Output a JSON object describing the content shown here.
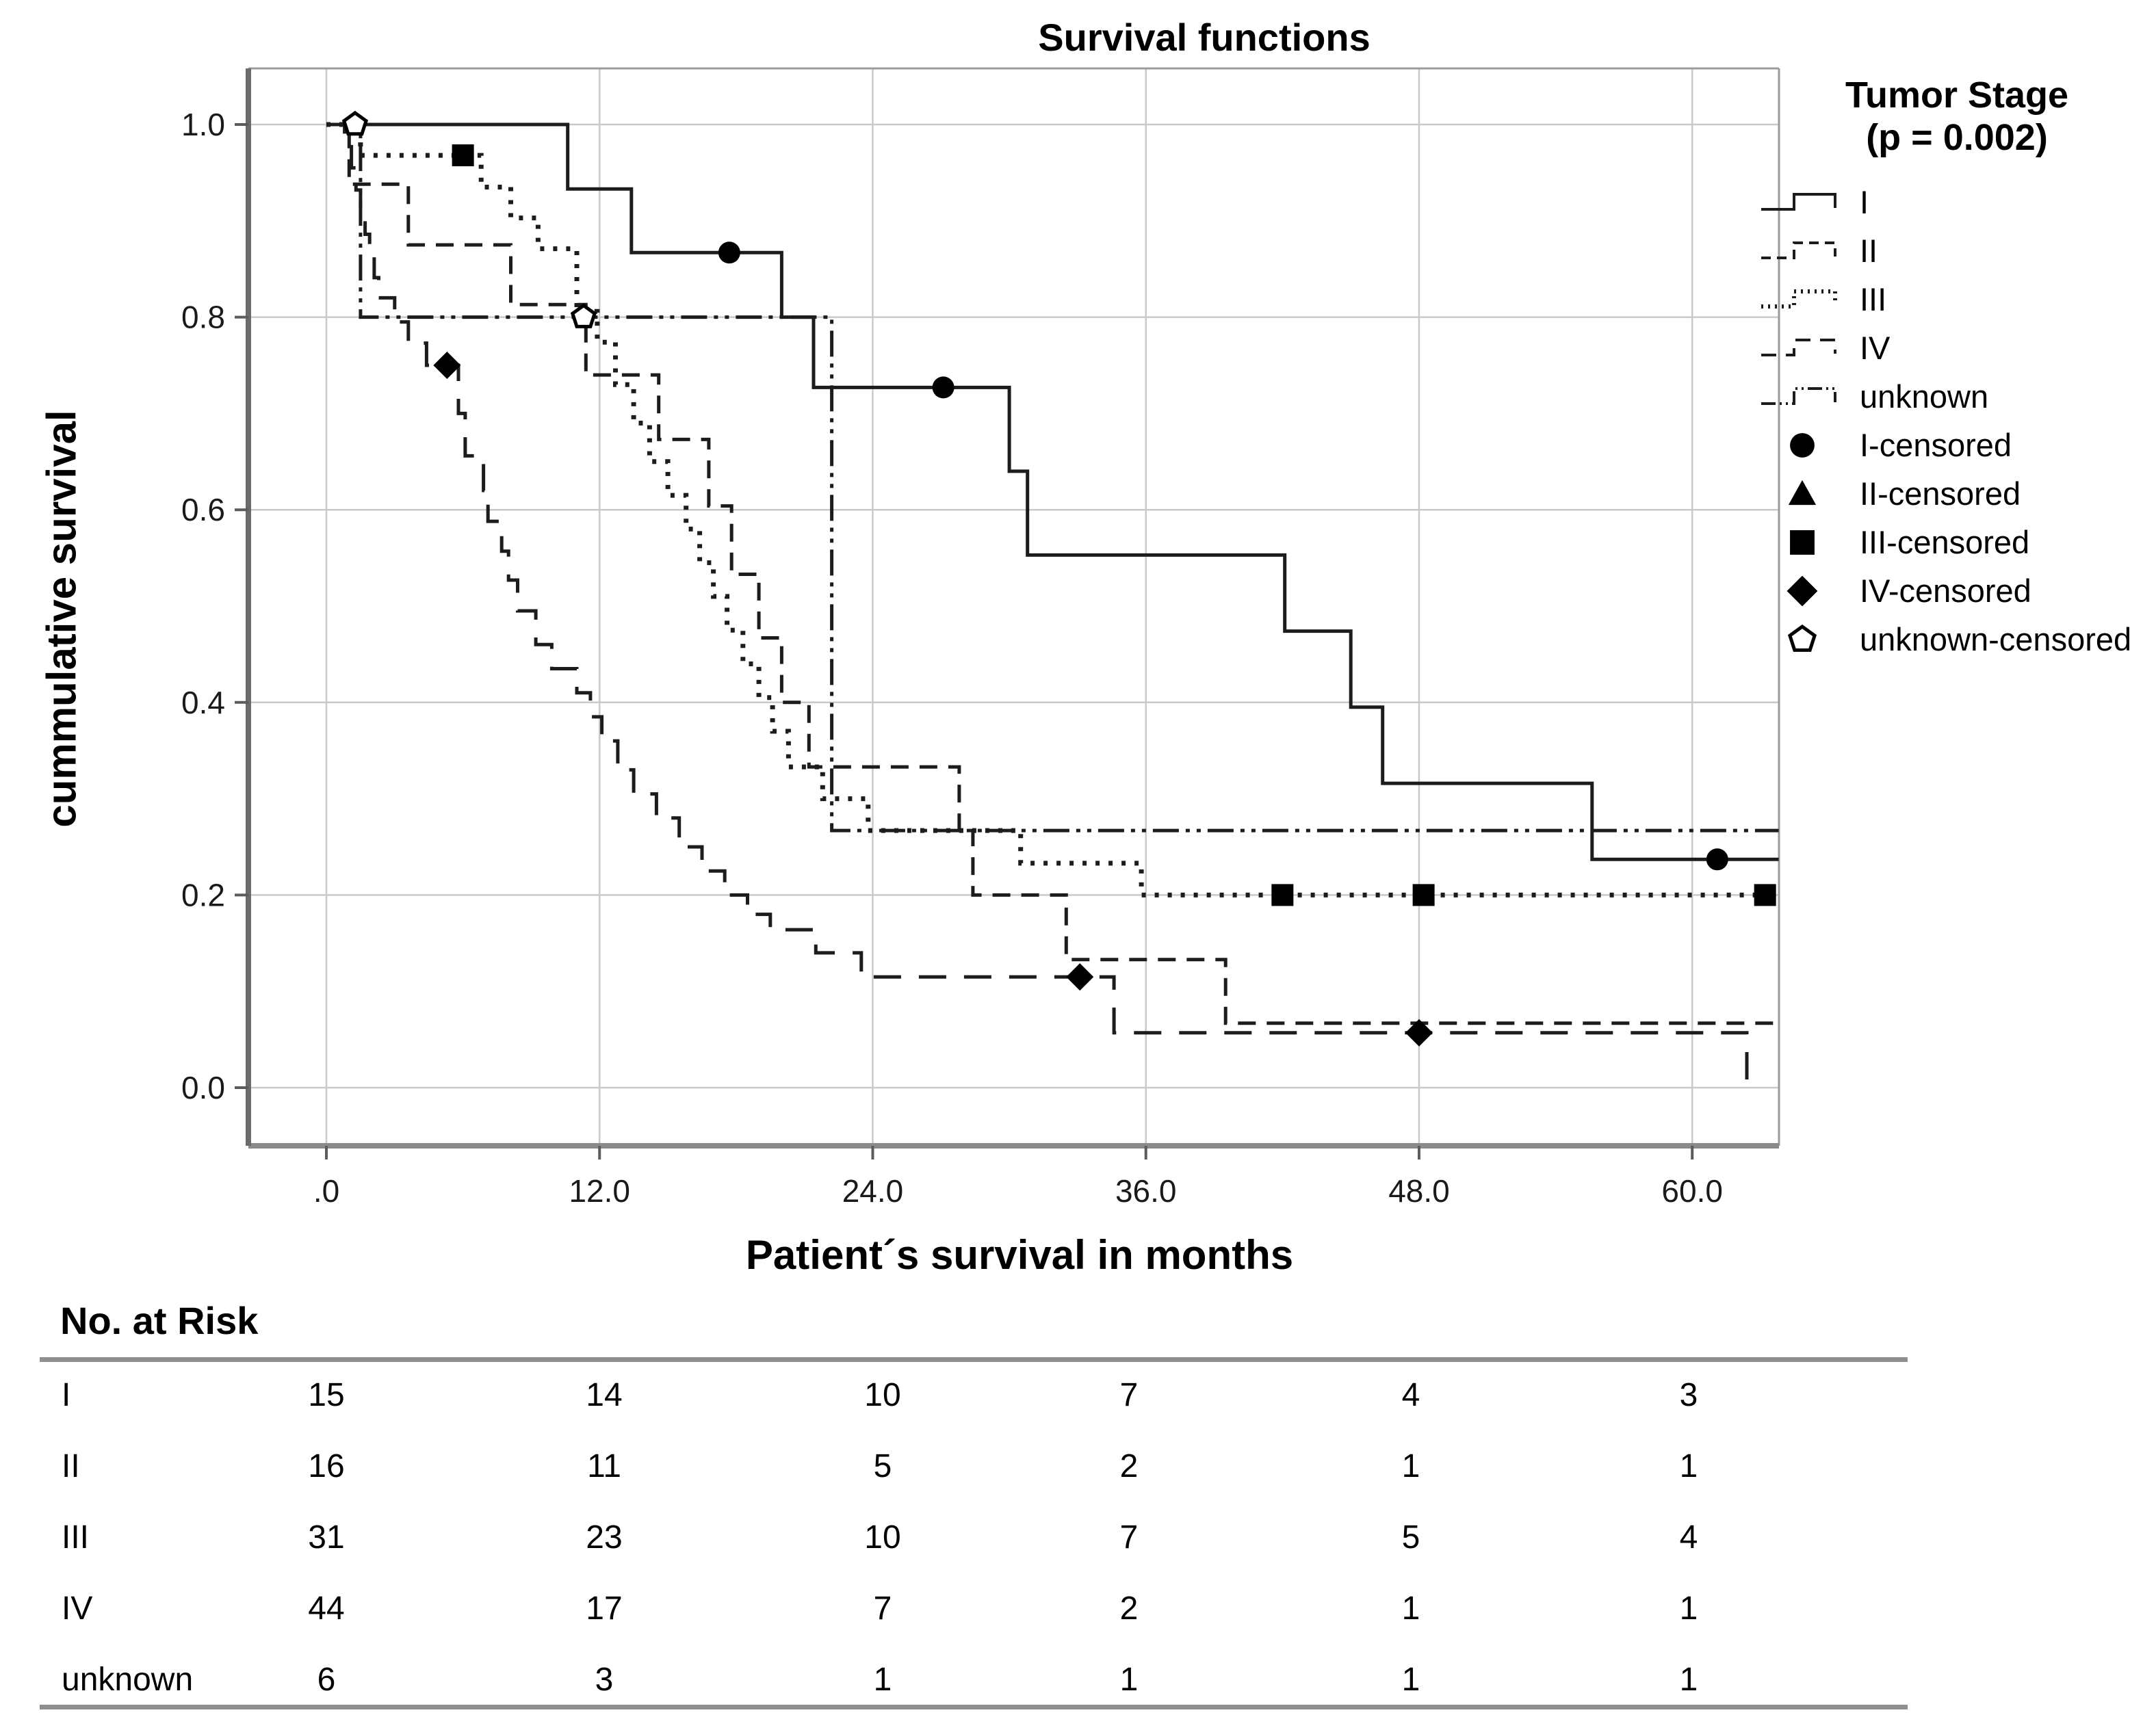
{
  "title": "Survival functions",
  "axes": {
    "ylabel": "cummulative survival",
    "xlabel": "Patient´s survival in months",
    "y_ticks": [
      "1.0",
      "0.8",
      "0.6",
      "0.4",
      "0.2",
      "0.0"
    ],
    "y_tick_values": [
      1.0,
      0.8,
      0.6,
      0.4,
      0.2,
      0.0
    ],
    "x_ticks": [
      ".0",
      "12.0",
      "24.0",
      "36.0",
      "48.0",
      "60.0"
    ],
    "x_tick_values": [
      0,
      12,
      24,
      36,
      48,
      60
    ]
  },
  "legend": {
    "title": "Tumor Stage",
    "subtitle": "(p = 0.002)",
    "line_entries": [
      {
        "label": "I",
        "style": "solid"
      },
      {
        "label": "II",
        "style": "dash"
      },
      {
        "label": "III",
        "style": "dot"
      },
      {
        "label": "IV",
        "style": "longdash"
      },
      {
        "label": "unknown",
        "style": "dashdotdot"
      }
    ],
    "marker_entries": [
      {
        "label": "I-censored",
        "marker": "circle"
      },
      {
        "label": "II-censored",
        "marker": "triangle"
      },
      {
        "label": "III-censored",
        "marker": "square"
      },
      {
        "label": "IV-censored",
        "marker": "diamond"
      },
      {
        "label": "unknown-censored",
        "marker": "pentagon"
      }
    ]
  },
  "chart_data": {
    "type": "line",
    "subtype": "kaplan-meier-step",
    "title": "Survival functions",
    "xlabel": "Patient´s survival in months",
    "ylabel": "cummulative survival",
    "xlim": [
      0,
      63.8
    ],
    "ylim": [
      0,
      1.05
    ],
    "grid": true,
    "legend_position": "right",
    "p_value": "p = 0.002",
    "series": [
      {
        "name": "I",
        "style": "solid",
        "marker": "circle",
        "points": [
          [
            0,
            1
          ],
          [
            10.6,
            1
          ],
          [
            10.6,
            0.933
          ],
          [
            13.4,
            0.933
          ],
          [
            13.4,
            0.867
          ],
          [
            20,
            0.867
          ],
          [
            20,
            0.8
          ],
          [
            21.4,
            0.8
          ],
          [
            21.4,
            0.727
          ],
          [
            30,
            0.727
          ],
          [
            30,
            0.64
          ],
          [
            30.8,
            0.64
          ],
          [
            30.8,
            0.553
          ],
          [
            42.1,
            0.553
          ],
          [
            42.1,
            0.474
          ],
          [
            45,
            0.474
          ],
          [
            45,
            0.395
          ],
          [
            46.4,
            0.395
          ],
          [
            46.4,
            0.316
          ],
          [
            55.6,
            0.316
          ],
          [
            55.6,
            0.237
          ],
          [
            63.8,
            0.237
          ]
        ],
        "censored": [
          [
            17.7,
            0.867
          ],
          [
            27.1,
            0.727
          ],
          [
            61.1,
            0.237
          ]
        ]
      },
      {
        "name": "II",
        "style": "dash",
        "marker": "triangle",
        "points": [
          [
            0,
            1
          ],
          [
            1.0,
            1
          ],
          [
            1.0,
            0.938
          ],
          [
            3.6,
            0.938
          ],
          [
            3.6,
            0.875
          ],
          [
            8.1,
            0.875
          ],
          [
            8.1,
            0.813
          ],
          [
            11.4,
            0.813
          ],
          [
            11.4,
            0.74
          ],
          [
            14.6,
            0.74
          ],
          [
            14.6,
            0.673
          ],
          [
            16.8,
            0.673
          ],
          [
            16.8,
            0.604
          ],
          [
            17.8,
            0.604
          ],
          [
            17.8,
            0.533
          ],
          [
            19,
            0.533
          ],
          [
            19,
            0.467
          ],
          [
            20,
            0.467
          ],
          [
            20,
            0.4
          ],
          [
            21.2,
            0.4
          ],
          [
            21.2,
            0.333
          ],
          [
            27.8,
            0.333
          ],
          [
            27.8,
            0.267
          ],
          [
            28.4,
            0.267
          ],
          [
            28.4,
            0.2
          ],
          [
            32.5,
            0.2
          ],
          [
            32.5,
            0.133
          ],
          [
            39.5,
            0.133
          ],
          [
            39.5,
            0.067
          ],
          [
            63.8,
            0.067
          ]
        ],
        "censored": []
      },
      {
        "name": "III",
        "style": "dot",
        "marker": "square",
        "points": [
          [
            0,
            1
          ],
          [
            1.5,
            1
          ],
          [
            1.5,
            0.968
          ],
          [
            6.8,
            0.968
          ],
          [
            6.8,
            0.935
          ],
          [
            8.1,
            0.935
          ],
          [
            8.1,
            0.903
          ],
          [
            9.3,
            0.903
          ],
          [
            9.3,
            0.871
          ],
          [
            11.0,
            0.871
          ],
          [
            11.0,
            0.806
          ],
          [
            11.9,
            0.806
          ],
          [
            11.9,
            0.774
          ],
          [
            12.7,
            0.774
          ],
          [
            12.7,
            0.73
          ],
          [
            13.5,
            0.73
          ],
          [
            13.5,
            0.69
          ],
          [
            14.2,
            0.69
          ],
          [
            14.2,
            0.65
          ],
          [
            15,
            0.65
          ],
          [
            15,
            0.615
          ],
          [
            15.8,
            0.615
          ],
          [
            15.8,
            0.58
          ],
          [
            16.4,
            0.58
          ],
          [
            16.4,
            0.545
          ],
          [
            17,
            0.545
          ],
          [
            17,
            0.51
          ],
          [
            17.6,
            0.51
          ],
          [
            17.6,
            0.475
          ],
          [
            18.3,
            0.475
          ],
          [
            18.3,
            0.44
          ],
          [
            19,
            0.44
          ],
          [
            19,
            0.405
          ],
          [
            19.6,
            0.405
          ],
          [
            19.6,
            0.37
          ],
          [
            20.3,
            0.37
          ],
          [
            20.3,
            0.333
          ],
          [
            21.8,
            0.333
          ],
          [
            21.8,
            0.3
          ],
          [
            23.8,
            0.3
          ],
          [
            23.8,
            0.267
          ],
          [
            30.5,
            0.267
          ],
          [
            30.5,
            0.233
          ],
          [
            35.8,
            0.233
          ],
          [
            35.8,
            0.2
          ],
          [
            63.6,
            0.2
          ]
        ],
        "censored": [
          [
            6.0,
            0.968
          ],
          [
            42,
            0.2
          ],
          [
            48.2,
            0.2
          ],
          [
            63.2,
            0.2
          ]
        ]
      },
      {
        "name": "IV",
        "style": "longdash",
        "marker": "diamond",
        "points": [
          [
            0,
            1
          ],
          [
            0.8,
            1
          ],
          [
            0.8,
            0.977
          ],
          [
            1.1,
            0.977
          ],
          [
            1.1,
            0.955
          ],
          [
            1.3,
            0.955
          ],
          [
            1.3,
            0.932
          ],
          [
            1.5,
            0.932
          ],
          [
            1.5,
            0.909
          ],
          [
            1.7,
            0.909
          ],
          [
            1.7,
            0.886
          ],
          [
            1.9,
            0.886
          ],
          [
            1.9,
            0.864
          ],
          [
            2.1,
            0.864
          ],
          [
            2.1,
            0.841
          ],
          [
            2.3,
            0.841
          ],
          [
            2.3,
            0.82
          ],
          [
            3.0,
            0.82
          ],
          [
            3.0,
            0.795
          ],
          [
            3.6,
            0.795
          ],
          [
            3.6,
            0.773
          ],
          [
            4.4,
            0.773
          ],
          [
            4.4,
            0.75
          ],
          [
            5.8,
            0.75
          ],
          [
            5.8,
            0.7
          ],
          [
            6.1,
            0.7
          ],
          [
            6.1,
            0.656
          ],
          [
            6.9,
            0.656
          ],
          [
            6.9,
            0.62
          ],
          [
            7.1,
            0.62
          ],
          [
            7.1,
            0.588
          ],
          [
            7.7,
            0.588
          ],
          [
            7.7,
            0.557
          ],
          [
            8,
            0.557
          ],
          [
            8,
            0.527
          ],
          [
            8.4,
            0.527
          ],
          [
            8.4,
            0.495
          ],
          [
            9.2,
            0.495
          ],
          [
            9.2,
            0.46
          ],
          [
            9.9,
            0.46
          ],
          [
            9.9,
            0.435
          ],
          [
            11,
            0.435
          ],
          [
            11,
            0.41
          ],
          [
            11.6,
            0.41
          ],
          [
            11.6,
            0.385
          ],
          [
            12.1,
            0.385
          ],
          [
            12.1,
            0.36
          ],
          [
            12.8,
            0.36
          ],
          [
            12.8,
            0.33
          ],
          [
            13.5,
            0.33
          ],
          [
            13.5,
            0.305
          ],
          [
            14.5,
            0.305
          ],
          [
            14.5,
            0.28
          ],
          [
            15.5,
            0.28
          ],
          [
            15.5,
            0.25
          ],
          [
            16.5,
            0.25
          ],
          [
            16.5,
            0.225
          ],
          [
            17.5,
            0.225
          ],
          [
            17.5,
            0.2
          ],
          [
            18.5,
            0.2
          ],
          [
            18.5,
            0.18
          ],
          [
            19.5,
            0.18
          ],
          [
            19.5,
            0.164
          ],
          [
            21.5,
            0.164
          ],
          [
            21.5,
            0.14
          ],
          [
            23.5,
            0.14
          ],
          [
            23.5,
            0.115
          ],
          [
            34.6,
            0.115
          ],
          [
            34.6,
            0.057
          ],
          [
            62.4,
            0.057
          ],
          [
            62.4,
            0
          ]
        ],
        "censored": [
          [
            5.3,
            0.75
          ],
          [
            33.1,
            0.115
          ],
          [
            48,
            0.057
          ]
        ]
      },
      {
        "name": "unknown",
        "style": "dashdotdot",
        "marker": "pentagon",
        "points": [
          [
            0,
            1
          ],
          [
            1.5,
            1
          ],
          [
            1.5,
            0.8
          ],
          [
            22.2,
            0.8
          ],
          [
            22.2,
            0.267
          ],
          [
            63.8,
            0.267
          ]
        ],
        "censored": [
          [
            1.26,
            1
          ],
          [
            11.3,
            0.8
          ]
        ]
      }
    ]
  },
  "risk_table": {
    "title": "No. at Risk",
    "time_points": [
      0,
      12,
      24,
      36,
      48,
      60
    ],
    "rows": [
      {
        "label": "I",
        "values": [
          "15",
          "14",
          "10",
          "7",
          "4",
          "3"
        ]
      },
      {
        "label": "II",
        "values": [
          "16",
          "11",
          "5",
          "2",
          "1",
          "1"
        ]
      },
      {
        "label": "III",
        "values": [
          "31",
          "23",
          "10",
          "7",
          "5",
          "4"
        ]
      },
      {
        "label": "IV",
        "values": [
          "44",
          "17",
          "7",
          "2",
          "1",
          "1"
        ]
      },
      {
        "label": "unknown",
        "values": [
          "6",
          "3",
          "1",
          "1",
          "1",
          "1"
        ]
      }
    ]
  }
}
